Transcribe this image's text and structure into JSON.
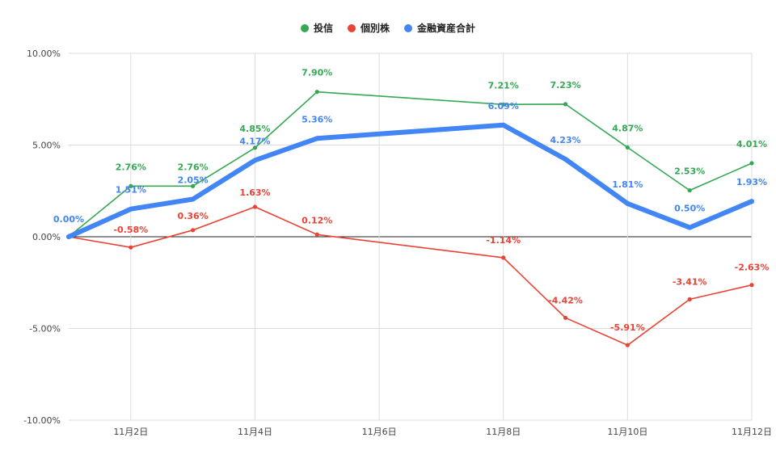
{
  "chart_data": {
    "type": "line",
    "title": "",
    "xlabel": "",
    "ylabel": "",
    "x": [
      "11月1日",
      "11月2日",
      "11月3日",
      "11月4日",
      "11月5日",
      "11月8日",
      "11月9日",
      "11月10日",
      "11月11日",
      "11月12日"
    ],
    "x_ticks": [
      "11月2日",
      "11月4日",
      "11月6日",
      "11月8日",
      "11月10日",
      "11月12日"
    ],
    "y_ticks": [
      "10.00%",
      "5.00%",
      "0.00%",
      "-5.00%",
      "-10.00%"
    ],
    "ylim": [
      -10,
      10
    ],
    "legend_position": "top",
    "series": [
      {
        "name": "投信",
        "color": "#34a853",
        "values": [
          0.0,
          2.76,
          2.76,
          4.85,
          7.9,
          7.21,
          7.23,
          4.87,
          2.53,
          4.01
        ],
        "labels": [
          "",
          "2.76%",
          "2.76%",
          "4.85%",
          "7.90%",
          "7.21%",
          "7.23%",
          "4.87%",
          "2.53%",
          "4.01%"
        ]
      },
      {
        "name": "個別株",
        "color": "#ea4335",
        "values": [
          0.0,
          -0.58,
          0.36,
          1.63,
          0.12,
          -1.14,
          -4.42,
          -5.91,
          -3.41,
          -2.63
        ],
        "labels": [
          "",
          "-0.58%",
          "0.36%",
          "1.63%",
          "0.12%",
          "-1.14%",
          "-4.42%",
          "-5.91%",
          "-3.41%",
          "-2.63%"
        ]
      },
      {
        "name": "金融資産合計",
        "color": "#4285f4",
        "values": [
          0.0,
          1.51,
          2.05,
          4.17,
          5.36,
          6.09,
          4.23,
          1.81,
          0.5,
          1.93
        ],
        "labels": [
          "0.00%",
          "1.51%",
          "2.05%",
          "4.17%",
          "5.36%",
          "6.09%",
          "4.23%",
          "1.81%",
          "0.50%",
          "1.93%"
        ]
      }
    ]
  }
}
